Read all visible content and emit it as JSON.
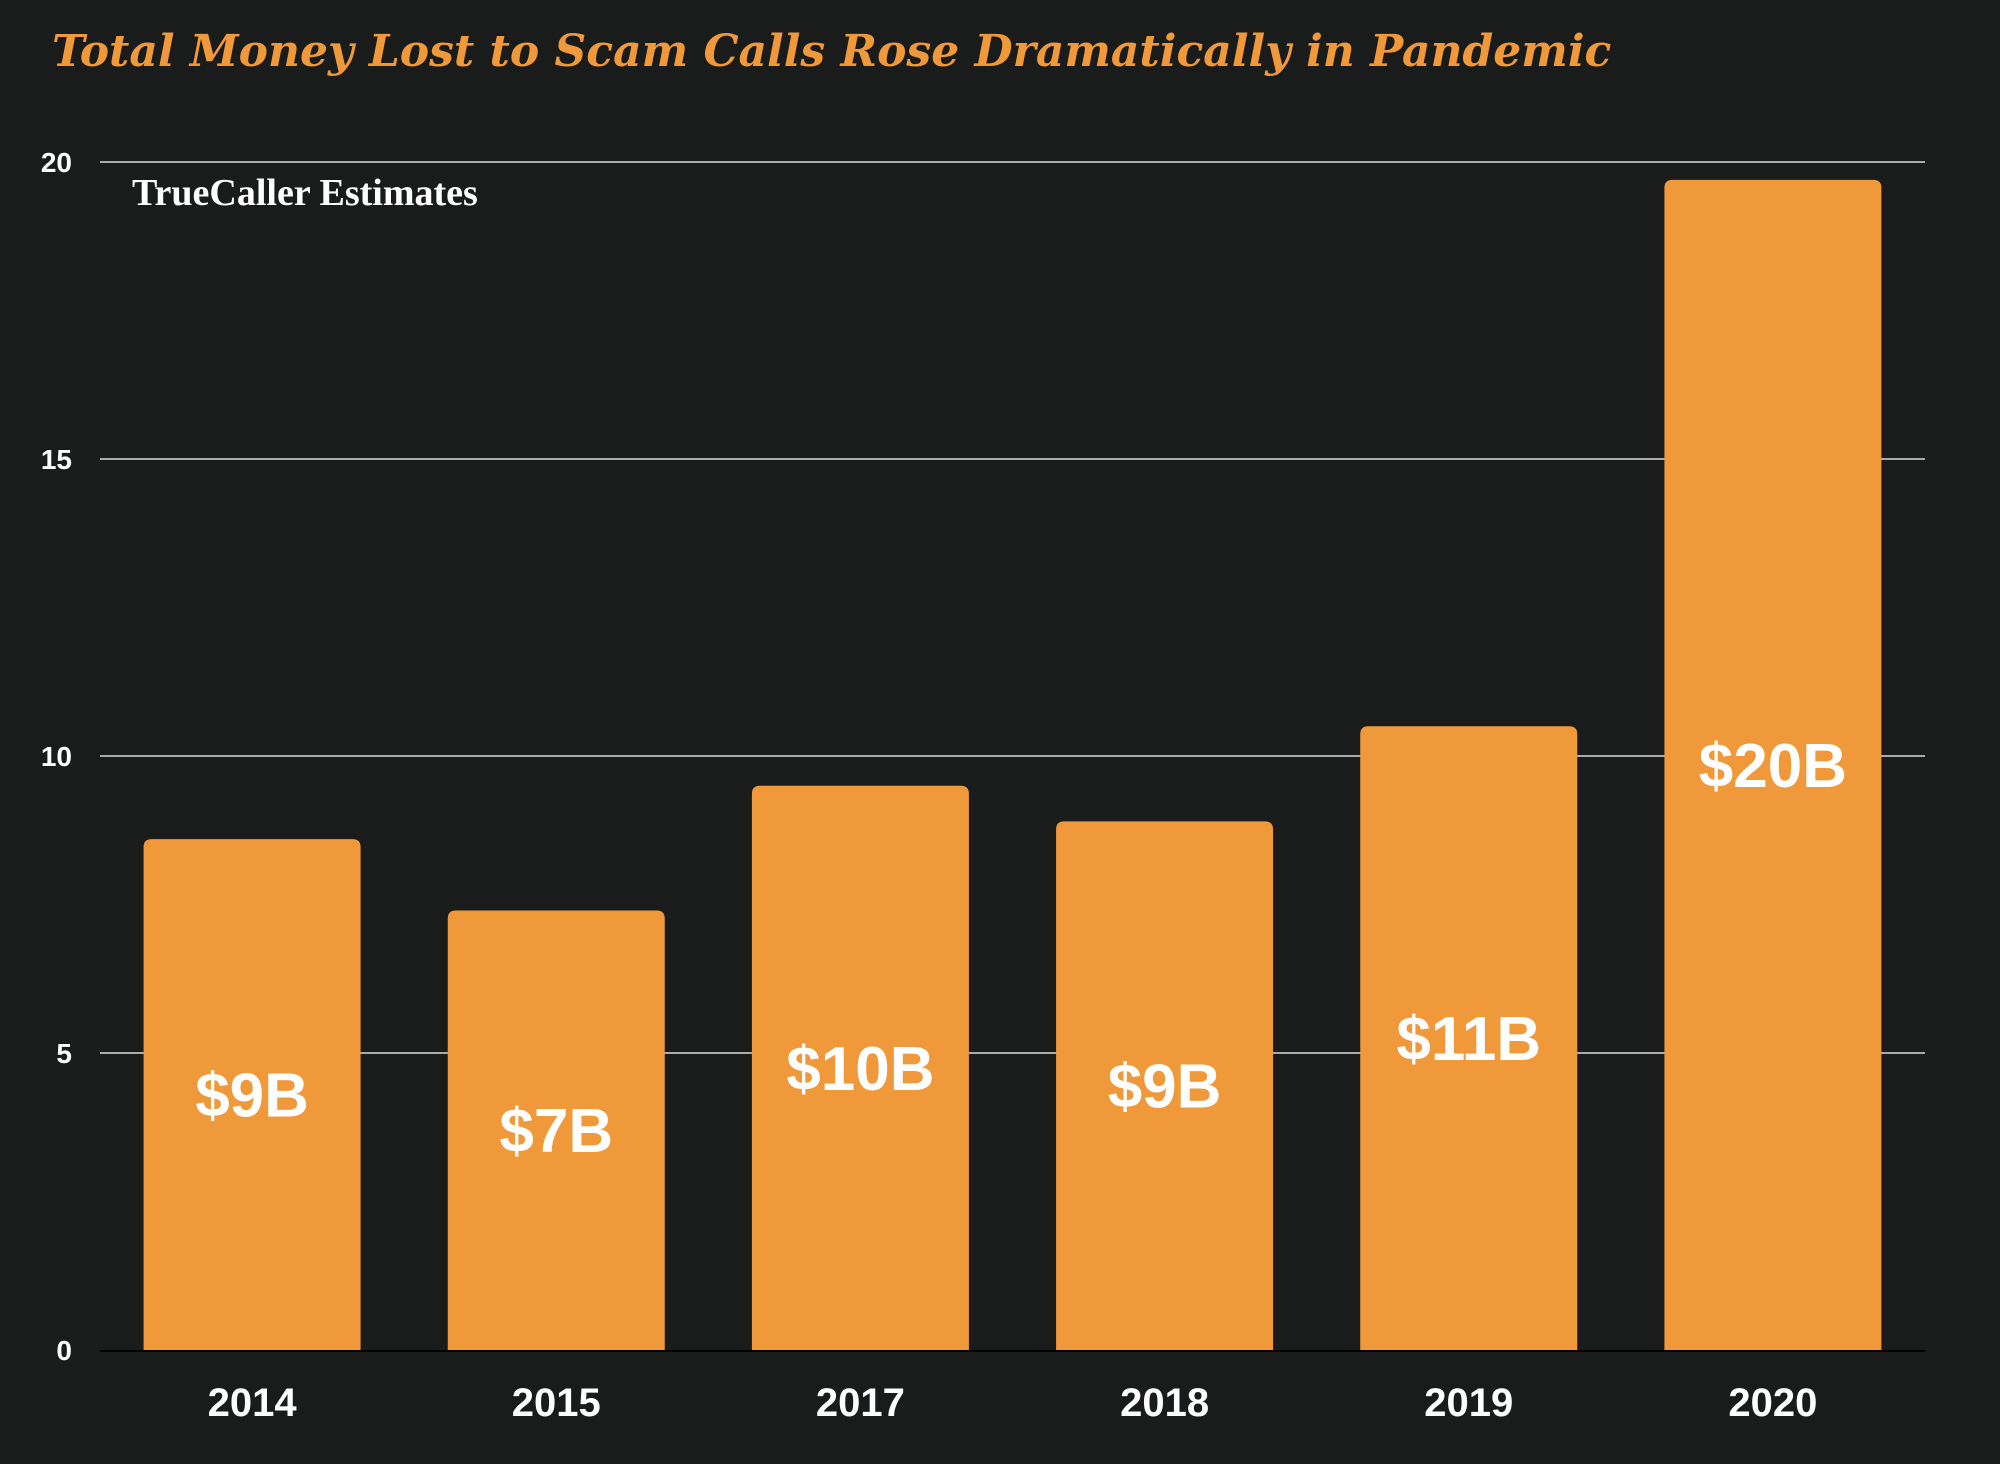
{
  "chart_data": {
    "type": "bar",
    "title": "Total Money Lost to Scam Calls Rose Dramatically in Pandemic",
    "subtitle": "TrueCaller Estimates",
    "categories": [
      "2014",
      "2015",
      "2017",
      "2018",
      "2019",
      "2020"
    ],
    "values": [
      8.6,
      7.4,
      9.5,
      8.9,
      10.5,
      19.7
    ],
    "data_labels": [
      "$9B",
      "$7B",
      "$10B",
      "$9B",
      "$11B",
      "$20B"
    ],
    "xlabel": "",
    "ylabel": "",
    "ylim": [
      0,
      20
    ],
    "yticks": [
      "0",
      "5",
      "10",
      "15",
      "20"
    ],
    "grid": true,
    "colors": {
      "bar": "#f0993a",
      "title": "#f0993a",
      "background": "#1a1b1b",
      "grid": "#d9d9d9",
      "text": "#ffffff"
    }
  }
}
